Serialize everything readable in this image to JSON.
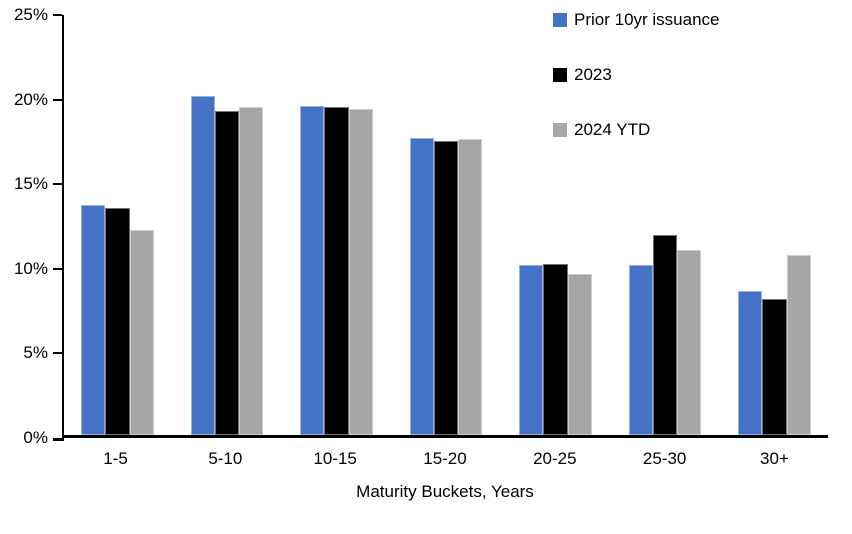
{
  "chart_data": {
    "type": "bar",
    "title": "",
    "xlabel": "Maturity Buckets, Years",
    "ylabel": "",
    "ylim": [
      0,
      25
    ],
    "ytick_step": 5,
    "ytick_suffix": "%",
    "grid": false,
    "legend_position": "top-right",
    "categories": [
      "1-5",
      "5-10",
      "10-15",
      "15-20",
      "20-25",
      "25-30",
      "30+"
    ],
    "series": [
      {
        "name": "Prior 10yr issuance",
        "color": "#4472C4",
        "values": [
          13.7,
          20.2,
          19.6,
          17.7,
          10.1,
          10.1,
          8.6
        ]
      },
      {
        "name": "2023",
        "color": "#000000",
        "values": [
          13.5,
          19.3,
          19.5,
          17.5,
          10.2,
          11.9,
          8.1
        ]
      },
      {
        "name": "2024 YTD",
        "color": "#A6A6A6",
        "values": [
          12.2,
          19.5,
          19.4,
          17.6,
          9.6,
          11.0,
          10.7
        ]
      }
    ]
  }
}
